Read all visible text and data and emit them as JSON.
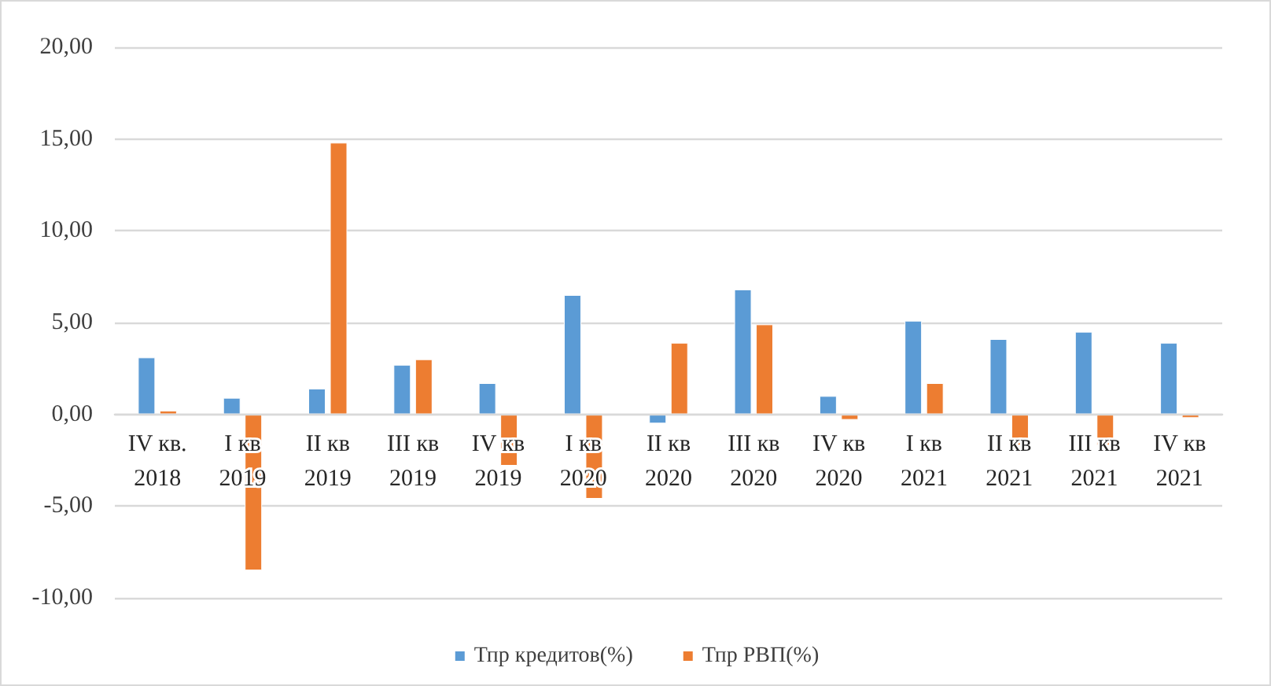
{
  "chart_data": {
    "type": "bar",
    "categories": [
      "IV кв.\n2018",
      "I кв\n2019",
      "II кв\n2019",
      "III кв\n2019",
      "IV кв\n2019",
      "I кв\n2020",
      "II кв\n2020",
      "III кв\n2020",
      "IV кв\n2020",
      "I кв\n2021",
      "II кв\n2021",
      "III кв\n2021",
      "IV кв\n2021"
    ],
    "series": [
      {
        "name": "Тпр кредитов(%)",
        "color": "#5b9bd5",
        "values": [
          3.1,
          0.9,
          1.4,
          2.7,
          1.7,
          6.5,
          -0.5,
          6.8,
          1.0,
          5.1,
          4.1,
          4.5,
          3.9
        ]
      },
      {
        "name": "Тпр РВП(%)",
        "color": "#ed7d31",
        "values": [
          0.2,
          -8.5,
          14.8,
          3.0,
          -2.8,
          -4.6,
          3.9,
          4.9,
          -0.3,
          1.7,
          -1.7,
          -1.7,
          -0.2
        ]
      }
    ],
    "ylim": [
      -10,
      20
    ],
    "yticks": [
      {
        "value": -10,
        "label": "-10,00"
      },
      {
        "value": -5,
        "label": "-5,00"
      },
      {
        "value": 0,
        "label": "0,00"
      },
      {
        "value": 5,
        "label": "5,00"
      },
      {
        "value": 10,
        "label": "10,00"
      },
      {
        "value": 15,
        "label": "15,00"
      },
      {
        "value": 20,
        "label": "20,00"
      }
    ],
    "grid": "y",
    "legend": "bottom"
  }
}
